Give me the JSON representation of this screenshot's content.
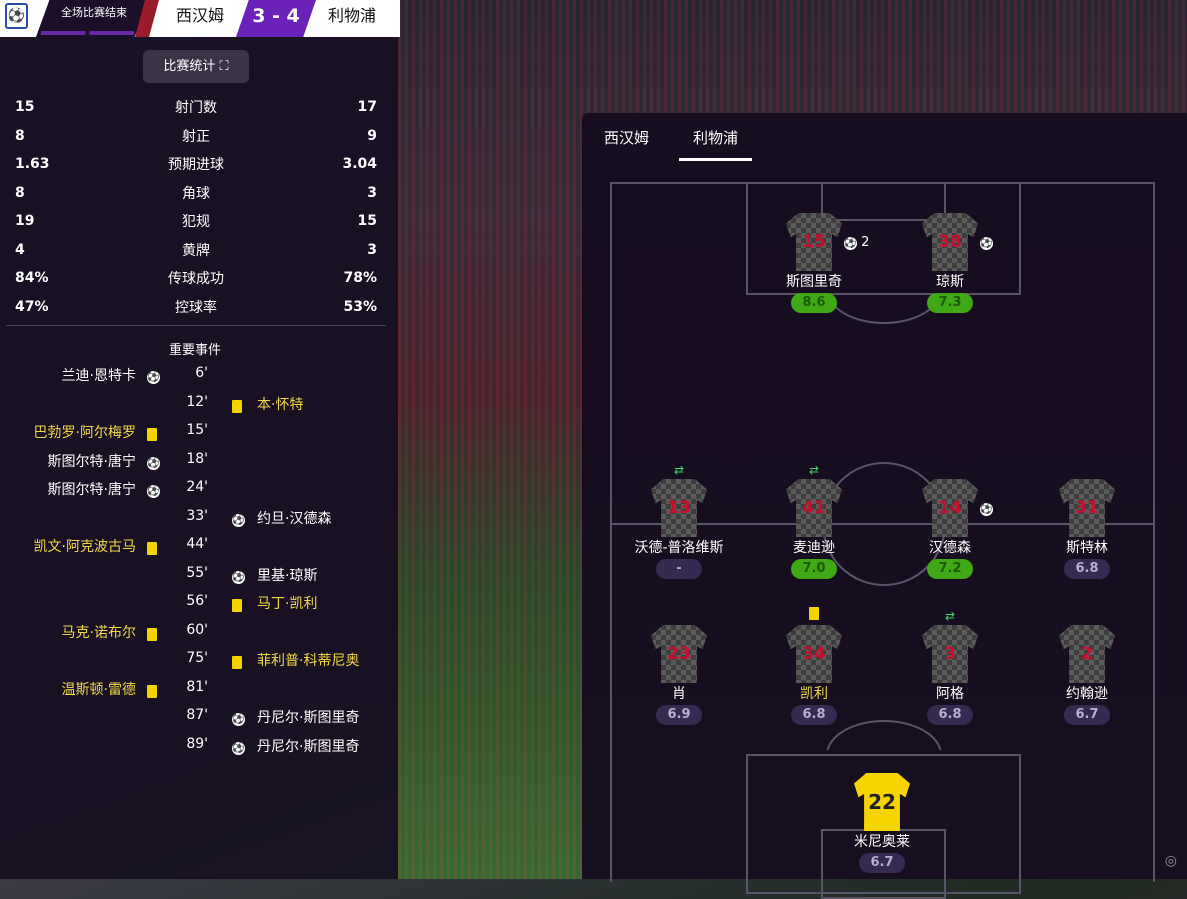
{
  "header": {
    "status": "全场比赛结束",
    "home": "西汉姆",
    "score": "3 - 4",
    "away": "利物浦"
  },
  "stats_button": "比赛统计",
  "stats": [
    {
      "label": "射门数",
      "home": "15",
      "away": "17"
    },
    {
      "label": "射正",
      "home": "8",
      "away": "9"
    },
    {
      "label": "预期进球",
      "home": "1.63",
      "away": "3.04"
    },
    {
      "label": "角球",
      "home": "8",
      "away": "3"
    },
    {
      "label": "犯规",
      "home": "19",
      "away": "15"
    },
    {
      "label": "黄牌",
      "home": "4",
      "away": "3"
    },
    {
      "label": "传球成功",
      "home": "84%",
      "away": "78%"
    },
    {
      "label": "控球率",
      "home": "47%",
      "away": "53%"
    }
  ],
  "events_title": "重要事件",
  "events": [
    {
      "side": "home",
      "player": "兰迪·恩特卡",
      "type": "goal",
      "minute": "6'"
    },
    {
      "side": "away",
      "player": "本·怀特",
      "type": "yellow",
      "minute": "12'"
    },
    {
      "side": "home",
      "player": "巴勃罗·阿尔梅罗",
      "type": "yellow",
      "minute": "15'"
    },
    {
      "side": "home",
      "player": "斯图尔特·唐宁",
      "type": "goal",
      "minute": "18'"
    },
    {
      "side": "home",
      "player": "斯图尔特·唐宁",
      "type": "goal",
      "minute": "24'"
    },
    {
      "side": "away",
      "player": "约旦·汉德森",
      "type": "goal",
      "minute": "33'"
    },
    {
      "side": "home",
      "player": "凯文·阿克波古马",
      "type": "yellow",
      "minute": "44'"
    },
    {
      "side": "away",
      "player": "里基·琼斯",
      "type": "goal",
      "minute": "55'"
    },
    {
      "side": "away",
      "player": "马丁·凯利",
      "type": "yellow",
      "minute": "56'"
    },
    {
      "side": "home",
      "player": "马克·诺布尔",
      "type": "yellow",
      "minute": "60'"
    },
    {
      "side": "away",
      "player": "菲利普·科蒂尼奥",
      "type": "yellow",
      "minute": "75'"
    },
    {
      "side": "home",
      "player": "温斯顿·雷德",
      "type": "yellow",
      "minute": "81'"
    },
    {
      "side": "away",
      "player": "丹尼尔·斯图里奇",
      "type": "goal",
      "minute": "87'"
    },
    {
      "side": "away",
      "player": "丹尼尔·斯图里奇",
      "type": "goal",
      "minute": "89'"
    }
  ],
  "lineup": {
    "tabs": [
      "西汉姆",
      "利物浦"
    ],
    "active_tab": "利物浦",
    "players": [
      {
        "number": "15",
        "name": "斯图里奇",
        "rating": "8.6",
        "good": true,
        "goals": "2"
      },
      {
        "number": "38",
        "name": "琼斯",
        "rating": "7.3",
        "good": true,
        "goals": ""
      },
      {
        "number": "13",
        "name": "沃德-普洛维斯",
        "rating": "-",
        "sub": true
      },
      {
        "number": "41",
        "name": "麦迪逊",
        "rating": "7.0",
        "good": true,
        "sub": true
      },
      {
        "number": "14",
        "name": "汉德森",
        "rating": "7.2",
        "good": true,
        "goals": ""
      },
      {
        "number": "31",
        "name": "斯特林",
        "rating": "6.8"
      },
      {
        "number": "23",
        "name": "肖",
        "rating": "6.9"
      },
      {
        "number": "34",
        "name": "凯利",
        "rating": "6.8",
        "yellow": true
      },
      {
        "number": "3",
        "name": "阿格",
        "rating": "6.8",
        "sub": true
      },
      {
        "number": "2",
        "name": "约翰逊",
        "rating": "6.7"
      },
      {
        "number": "22",
        "name": "米尼奥莱",
        "rating": "6.7",
        "gk": true
      }
    ]
  },
  "colors": {
    "accent": "#6a22b8",
    "rating_good": "#3fa814",
    "yellow_card": "#f4d400"
  }
}
